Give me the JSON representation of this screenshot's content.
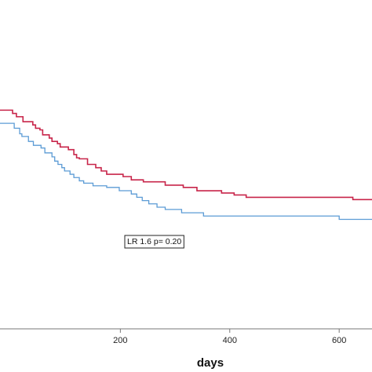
{
  "chart_data": {
    "type": "line",
    "title": "",
    "xlabel": "days",
    "ylabel": "",
    "xlim": [
      -20,
      660
    ],
    "ylim": [
      0,
      1
    ],
    "x_ticks": [
      200,
      400,
      600
    ],
    "grid": false,
    "annotation": "LR 1.6 p= 0.20",
    "colors": {
      "series_a": "#c8254a",
      "series_b": "#5b9bd5",
      "axis": "#777777"
    },
    "series": [
      {
        "color": "#c8254a",
        "points": [
          [
            -20,
            0.665
          ],
          [
            0,
            0.665
          ],
          [
            3,
            0.655
          ],
          [
            10,
            0.645
          ],
          [
            22,
            0.63
          ],
          [
            40,
            0.62
          ],
          [
            45,
            0.61
          ],
          [
            53,
            0.605
          ],
          [
            58,
            0.59
          ],
          [
            70,
            0.58
          ],
          [
            75,
            0.57
          ],
          [
            85,
            0.563
          ],
          [
            90,
            0.553
          ],
          [
            105,
            0.545
          ],
          [
            115,
            0.53
          ],
          [
            120,
            0.52
          ],
          [
            125,
            0.517
          ],
          [
            140,
            0.5
          ],
          [
            155,
            0.49
          ],
          [
            165,
            0.48
          ],
          [
            175,
            0.47
          ],
          [
            205,
            0.463
          ],
          [
            220,
            0.453
          ],
          [
            242,
            0.447
          ],
          [
            282,
            0.437
          ],
          [
            315,
            0.43
          ],
          [
            340,
            0.42
          ],
          [
            385,
            0.413
          ],
          [
            408,
            0.407
          ],
          [
            430,
            0.4
          ],
          [
            625,
            0.393
          ],
          [
            660,
            0.393
          ]
        ]
      },
      {
        "color": "#5b9bd5",
        "points": [
          [
            -20,
            0.625
          ],
          [
            0,
            0.625
          ],
          [
            6,
            0.61
          ],
          [
            16,
            0.593
          ],
          [
            20,
            0.585
          ],
          [
            32,
            0.57
          ],
          [
            41,
            0.558
          ],
          [
            55,
            0.55
          ],
          [
            62,
            0.535
          ],
          [
            75,
            0.523
          ],
          [
            80,
            0.51
          ],
          [
            86,
            0.5
          ],
          [
            93,
            0.49
          ],
          [
            98,
            0.48
          ],
          [
            108,
            0.47
          ],
          [
            115,
            0.46
          ],
          [
            125,
            0.45
          ],
          [
            133,
            0.443
          ],
          [
            150,
            0.435
          ],
          [
            175,
            0.43
          ],
          [
            198,
            0.42
          ],
          [
            220,
            0.41
          ],
          [
            230,
            0.4
          ],
          [
            240,
            0.39
          ],
          [
            252,
            0.38
          ],
          [
            267,
            0.37
          ],
          [
            282,
            0.363
          ],
          [
            312,
            0.353
          ],
          [
            352,
            0.343
          ],
          [
            600,
            0.333
          ],
          [
            660,
            0.333
          ]
        ]
      }
    ]
  }
}
